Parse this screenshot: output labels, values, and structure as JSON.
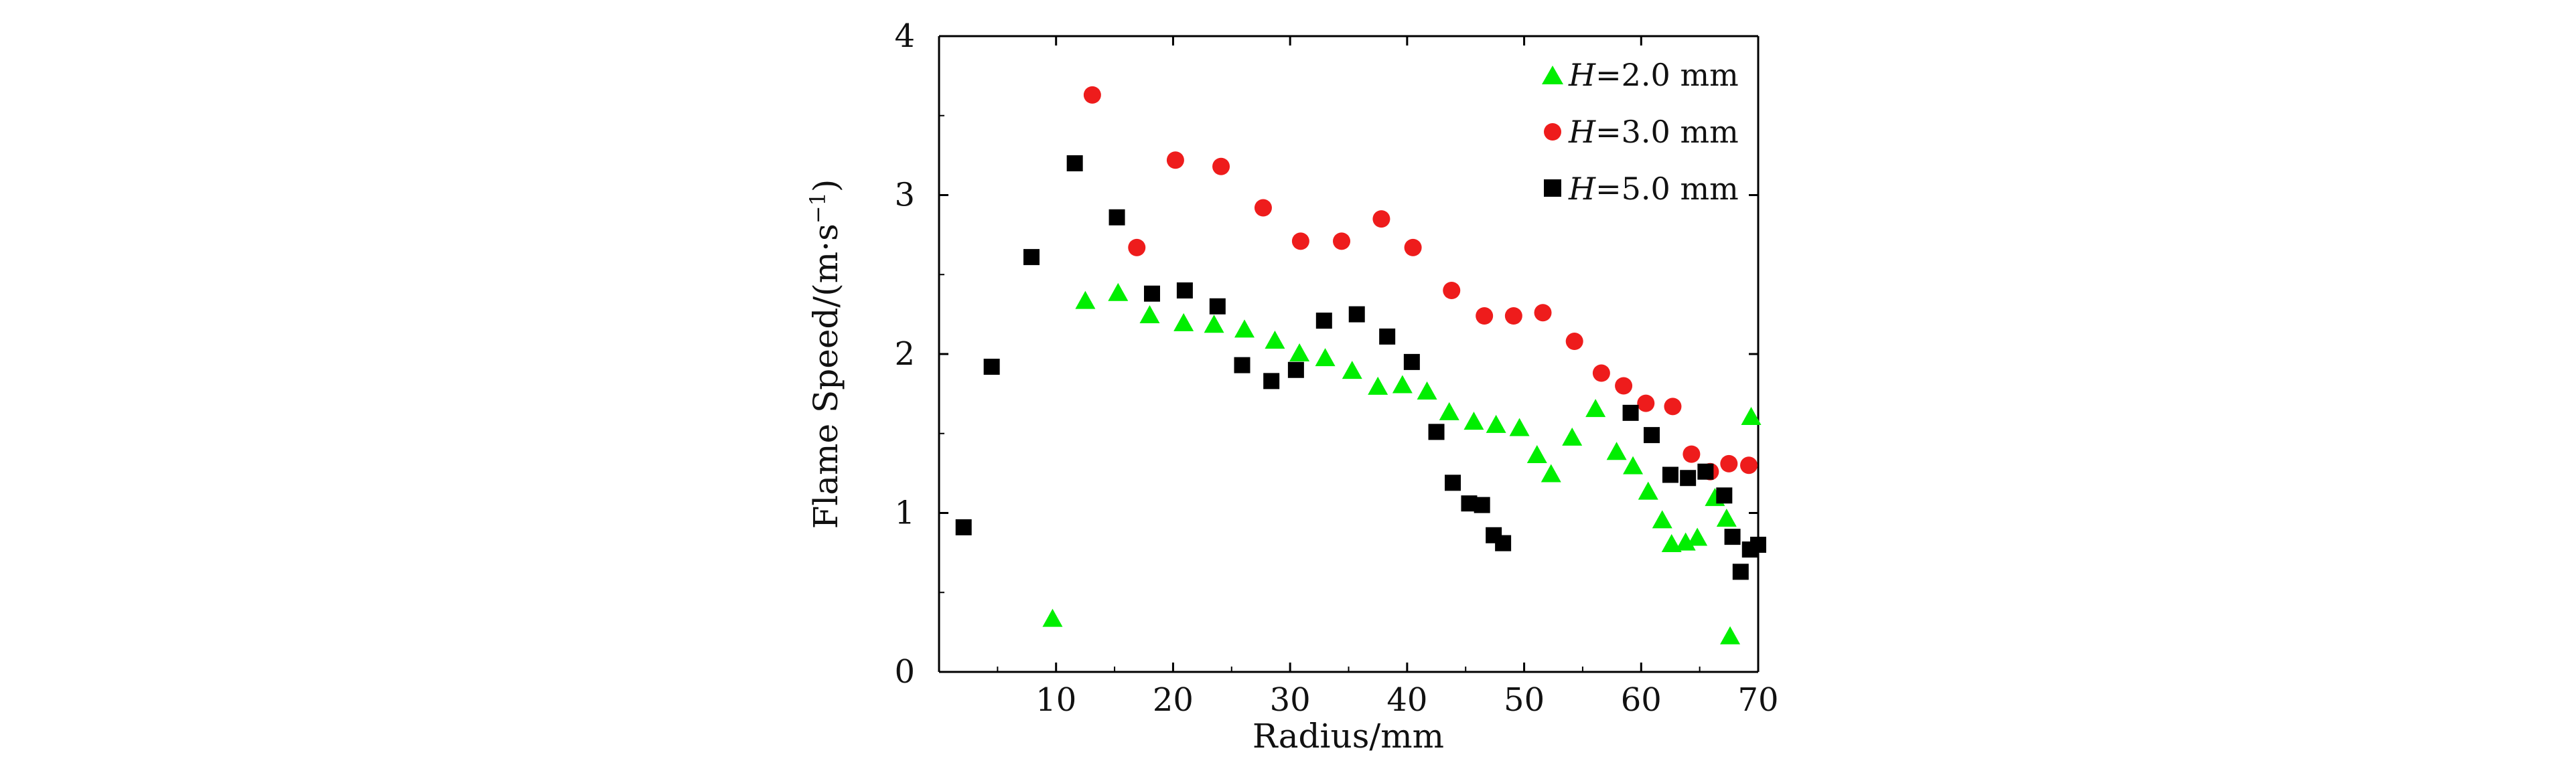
{
  "chart_data": {
    "type": "scatter",
    "title": "",
    "xlabel": "Radius/mm",
    "ylabel_main": "Flame Speed/(m·s",
    "ylabel_sup": "−1",
    "ylabel_close": ")",
    "xlim": [
      0,
      70
    ],
    "ylim": [
      0,
      4
    ],
    "x_ticks": [
      10,
      20,
      30,
      40,
      50,
      60,
      70
    ],
    "y_ticks": [
      0,
      1,
      2,
      3,
      4
    ],
    "grid": false,
    "legend_position": "top-right",
    "series": [
      {
        "name_var": "H",
        "name_rest": "=2.0 mm",
        "marker": "triangle",
        "color": "#00ee00",
        "points": [
          [
            9.7,
            0.33
          ],
          [
            12.5,
            2.33
          ],
          [
            15.3,
            2.38
          ],
          [
            18,
            2.24
          ],
          [
            20.9,
            2.19
          ],
          [
            23.5,
            2.18
          ],
          [
            26.1,
            2.15
          ],
          [
            28.7,
            2.08
          ],
          [
            30.8,
            2.0
          ],
          [
            33,
            1.97
          ],
          [
            35.3,
            1.89
          ],
          [
            37.5,
            1.79
          ],
          [
            39.6,
            1.8
          ],
          [
            41.7,
            1.76
          ],
          [
            43.6,
            1.63
          ],
          [
            45.7,
            1.57
          ],
          [
            47.6,
            1.55
          ],
          [
            49.6,
            1.53
          ],
          [
            51.1,
            1.36
          ],
          [
            52.3,
            1.24
          ],
          [
            54.1,
            1.47
          ],
          [
            56.1,
            1.65
          ],
          [
            57.9,
            1.38
          ],
          [
            59.3,
            1.29
          ],
          [
            60.6,
            1.13
          ],
          [
            61.8,
            0.95
          ],
          [
            62.6,
            0.8
          ],
          [
            63.8,
            0.81
          ],
          [
            64.8,
            0.84
          ],
          [
            66.3,
            1.09
          ],
          [
            67.3,
            0.96
          ],
          [
            67.6,
            0.22
          ],
          [
            69.4,
            1.6
          ]
        ]
      },
      {
        "name_var": "H",
        "name_rest": "=3.0 mm",
        "marker": "circle",
        "color": "#ee1c1c",
        "points": [
          [
            13.1,
            3.63
          ],
          [
            16.9,
            2.67
          ],
          [
            20.2,
            3.22
          ],
          [
            24.1,
            3.18
          ],
          [
            27.7,
            2.92
          ],
          [
            30.9,
            2.71
          ],
          [
            34.4,
            2.71
          ],
          [
            37.8,
            2.85
          ],
          [
            40.5,
            2.67
          ],
          [
            43.8,
            2.4
          ],
          [
            46.6,
            2.24
          ],
          [
            49.1,
            2.24
          ],
          [
            51.6,
            2.26
          ],
          [
            54.3,
            2.08
          ],
          [
            56.6,
            1.88
          ],
          [
            58.5,
            1.8
          ],
          [
            60.4,
            1.69
          ],
          [
            62.7,
            1.67
          ],
          [
            64.3,
            1.37
          ],
          [
            65.9,
            1.26
          ],
          [
            67.5,
            1.31
          ],
          [
            69.2,
            1.3
          ]
        ]
      },
      {
        "name_var": "H",
        "name_rest": "=5.0 mm",
        "marker": "square",
        "color": "#000000",
        "points": [
          [
            2.1,
            0.91
          ],
          [
            4.5,
            1.92
          ],
          [
            7.9,
            2.61
          ],
          [
            11.6,
            3.2
          ],
          [
            15.2,
            2.86
          ],
          [
            18.2,
            2.38
          ],
          [
            21,
            2.4
          ],
          [
            23.8,
            2.3
          ],
          [
            25.9,
            1.93
          ],
          [
            28.4,
            1.83
          ],
          [
            30.5,
            1.9
          ],
          [
            32.9,
            2.21
          ],
          [
            35.7,
            2.25
          ],
          [
            38.3,
            2.11
          ],
          [
            40.4,
            1.95
          ],
          [
            42.5,
            1.51
          ],
          [
            43.9,
            1.19
          ],
          [
            45.3,
            1.06
          ],
          [
            46.4,
            1.05
          ],
          [
            47.4,
            0.86
          ],
          [
            48.2,
            0.81
          ],
          [
            59.1,
            1.63
          ],
          [
            60.9,
            1.49
          ],
          [
            62.5,
            1.24
          ],
          [
            64,
            1.22
          ],
          [
            65.5,
            1.26
          ],
          [
            67.1,
            1.11
          ],
          [
            67.8,
            0.85
          ],
          [
            68.5,
            0.63
          ],
          [
            69.3,
            0.77
          ],
          [
            70,
            0.8
          ]
        ]
      }
    ]
  }
}
